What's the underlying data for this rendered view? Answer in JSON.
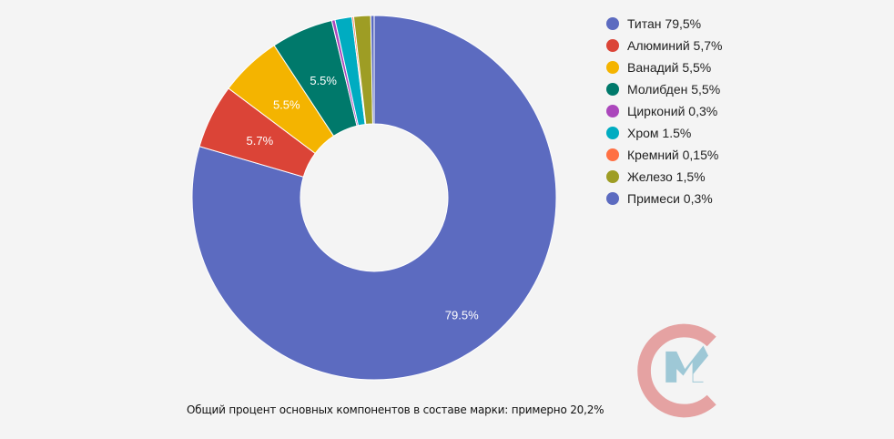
{
  "chart_data": {
    "type": "pie",
    "donut": true,
    "start": "top",
    "direction": "clockwise",
    "categories": [
      "Титан",
      "Алюминий",
      "Ванадий",
      "Молибден",
      "Цирконий",
      "Хром",
      "Кремний",
      "Железо",
      "Примеси"
    ],
    "values": [
      79.5,
      5.7,
      5.5,
      5.5,
      0.3,
      1.5,
      0.15,
      1.5,
      0.3
    ],
    "data_labels": [
      "79.5%",
      "5.7%",
      "5.5%",
      "5.5%",
      "",
      "",
      "",
      "",
      ""
    ],
    "colors": [
      "#5c6bc0",
      "#db4437",
      "#f4b400",
      "#00796b",
      "#ab47bc",
      "#00acc1",
      "#ff7043",
      "#9e9d24",
      "#5c6bc0"
    ],
    "legend": {
      "placement": "right",
      "entries": [
        "Титан 79,5%",
        "Алюминий 5,7%",
        "Ванадий 5,5%",
        "Молибден 5,5%",
        "Цирконий 0,3%",
        "Хром 1.5%",
        "Кремний 0,15%",
        "Железо 1,5%",
        "Примеси 0,3%"
      ]
    }
  },
  "caption": "Общий процент основных компонентов в составе марки: примерно 20,2%",
  "logo": {
    "letters": "СМ",
    "colors": [
      "#e5a2a2",
      "#9ec8d6"
    ]
  }
}
